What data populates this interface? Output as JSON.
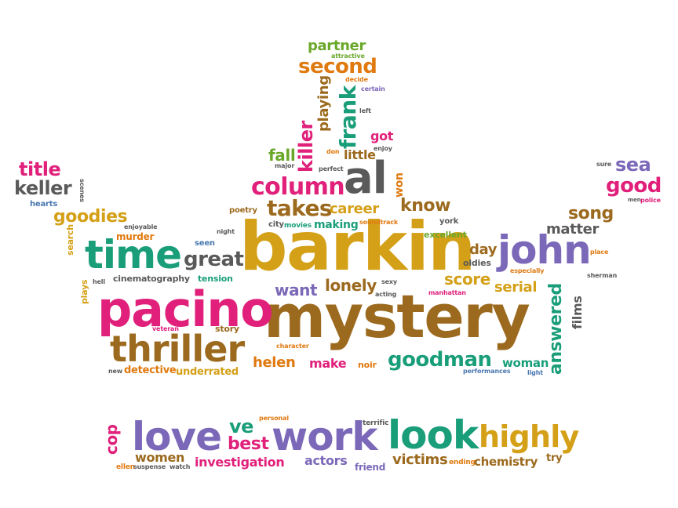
{
  "colors": {
    "gold": "#d4a017",
    "teal": "#1a9e7a",
    "magenta": "#e0207a",
    "purple": "#7b68b8",
    "brown": "#9c6a1e",
    "gray": "#5a5a5a",
    "orange": "#e07a10",
    "green": "#6aa82a",
    "pink": "#e8448a",
    "blue": "#4a78b0"
  },
  "words": {
    "barkin": "barkin",
    "mystery": "mystery",
    "pacino": "pacino",
    "thriller": "thriller",
    "time": "time",
    "john": "john",
    "al": "al",
    "column": "column",
    "great": "great",
    "takes": "takes",
    "career": "career",
    "know": "know",
    "won": "won",
    "got": "got",
    "little": "little",
    "fall": "fall",
    "killer": "killer",
    "playing": "playing",
    "frank": "frank",
    "second": "second",
    "partner": "partner",
    "attractive": "attractive",
    "decide": "decide",
    "certain": "certain",
    "left": "left",
    "enjoy": "enjoy",
    "don": "don",
    "perfect": "perfect",
    "major": "major",
    "title": "title",
    "keller": "keller",
    "scenes": "scenes",
    "hearts": "hearts",
    "goodies": "goodies",
    "enjoyable": "enjoyable",
    "search": "search",
    "murder": "murder",
    "night": "night",
    "seen": "seen",
    "poetry": "poetry",
    "city": "city",
    "movies": "movies",
    "making": "making",
    "soundtrack": "soundtrack",
    "excellent": "excellent",
    "york": "york",
    "sure": "sure",
    "sea": "sea",
    "good": "good",
    "men": "men",
    "police": "police",
    "song": "song",
    "matter": "matter",
    "day": "day",
    "place": "place",
    "oldies": "oldies",
    "lonely": "lonely",
    "score": "score",
    "especially": "especially",
    "sherman": "sherman",
    "serial": "serial",
    "answered": "answered",
    "films": "films",
    "want": "want",
    "sexy": "sexy",
    "acting": "acting",
    "manhattan": "manhattan",
    "cinematography": "cinematography",
    "tension": "tension",
    "hell": "hell",
    "plays": "plays",
    "veteran": "veteran",
    "story": "story",
    "character": "character",
    "helen": "helen",
    "make": "make",
    "noir": "noir",
    "goodman": "goodman",
    "woman": "woman",
    "performances": "performances",
    "light": "light",
    "new": "new",
    "detective": "detective",
    "underrated": "underrated",
    "cop": "cop",
    "love": "love",
    "ve": "ve",
    "personal": "personal",
    "best": "best",
    "work": "work",
    "terrific": "terrific",
    "look": "look",
    "highly": "highly",
    "women": "women",
    "ellen": "ellen",
    "suspense": "suspense",
    "watch": "watch",
    "investigation": "investigation",
    "actors": "actors",
    "friend": "friend",
    "victims": "victims",
    "ending": "ending",
    "chemistry": "chemistry",
    "try": "try"
  }
}
